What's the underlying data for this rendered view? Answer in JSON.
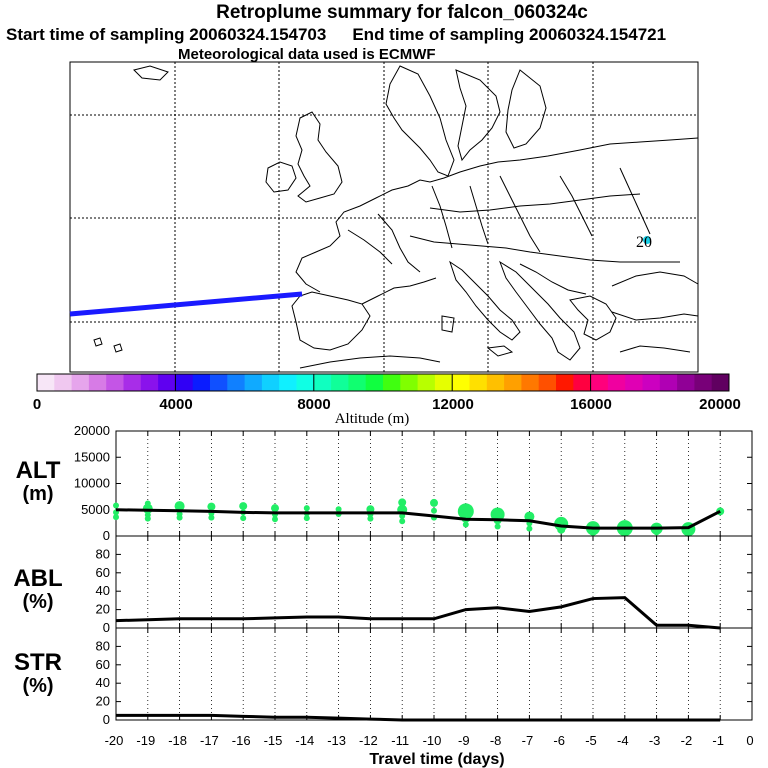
{
  "header": {
    "title": "Retroplume summary for falcon_060324c",
    "start_label": "Start time of sampling 20060324.154703",
    "end_label": "End time of sampling 20060324.154721",
    "met_label": "Meteorological data used is ECMWF"
  },
  "map": {
    "marker_label": "20",
    "trajectory_color": "#1a1aff",
    "marker_color": "#17d0e8"
  },
  "colorbar": {
    "label": "Altitude (m)",
    "ticks": [
      "0",
      "4000",
      "8000",
      "12000",
      "16000",
      "20000"
    ],
    "range": [
      0,
      20000
    ],
    "colors": [
      "#f7e6f7",
      "#f0c8f0",
      "#e6a5ec",
      "#d77be6",
      "#c455e6",
      "#a82de8",
      "#8a12ec",
      "#5f00f0",
      "#3000f5",
      "#0a1cff",
      "#1050ff",
      "#1080ff",
      "#10aaff",
      "#10d0ff",
      "#10f0ff",
      "#10ffe4",
      "#10ffc0",
      "#10ff99",
      "#10ff70",
      "#10ff40",
      "#40ff10",
      "#80ff00",
      "#b8ff00",
      "#e6ff00",
      "#ffff00",
      "#ffe000",
      "#ffc000",
      "#ffa000",
      "#ff7800",
      "#ff5000",
      "#ff1800",
      "#ff0040",
      "#ff007c",
      "#f000a0",
      "#e000b4",
      "#cc00c0",
      "#b000b4",
      "#900096",
      "#780078",
      "#600060"
    ]
  },
  "chart_data": [
    {
      "type": "line",
      "name": "ALT",
      "label": "ALT",
      "unit": "(m)",
      "ylim": [
        0,
        20000
      ],
      "yticks": [
        "0",
        "5000",
        "10000",
        "15000",
        "20000"
      ],
      "x": [
        -20,
        -19,
        -18,
        -17,
        -16,
        -15,
        -14,
        -13,
        -12,
        -11,
        -10,
        -9,
        -8,
        -7,
        -6,
        -5,
        -4,
        -3,
        -2,
        -1
      ],
      "values": [
        5000,
        4900,
        4800,
        4700,
        4500,
        4400,
        4400,
        4400,
        4400,
        4400,
        3800,
        3200,
        3100,
        2900,
        1900,
        1500,
        1500,
        1500,
        1600,
        4700
      ],
      "marker_color": "#22ee66",
      "scatter": [
        {
          "x": -20,
          "y": 5800,
          "r": 3
        },
        {
          "x": -20,
          "y": 4500,
          "r": 3
        },
        {
          "x": -20,
          "y": 3600,
          "r": 3
        },
        {
          "x": -19,
          "y": 6200,
          "r": 3
        },
        {
          "x": -19,
          "y": 5200,
          "r": 5
        },
        {
          "x": -19,
          "y": 4000,
          "r": 3
        },
        {
          "x": -19,
          "y": 3300,
          "r": 3
        },
        {
          "x": -18,
          "y": 5700,
          "r": 5
        },
        {
          "x": -18,
          "y": 4200,
          "r": 3
        },
        {
          "x": -18,
          "y": 3500,
          "r": 3
        },
        {
          "x": -17,
          "y": 5600,
          "r": 4
        },
        {
          "x": -17,
          "y": 4300,
          "r": 3
        },
        {
          "x": -17,
          "y": 3500,
          "r": 3
        },
        {
          "x": -16,
          "y": 5700,
          "r": 4
        },
        {
          "x": -16,
          "y": 4500,
          "r": 3
        },
        {
          "x": -16,
          "y": 3400,
          "r": 3
        },
        {
          "x": -15,
          "y": 5300,
          "r": 4
        },
        {
          "x": -15,
          "y": 4100,
          "r": 3
        },
        {
          "x": -15,
          "y": 3200,
          "r": 3
        },
        {
          "x": -14,
          "y": 5300,
          "r": 3
        },
        {
          "x": -14,
          "y": 4300,
          "r": 3
        },
        {
          "x": -14,
          "y": 3400,
          "r": 3
        },
        {
          "x": -13,
          "y": 5100,
          "r": 3
        },
        {
          "x": -13,
          "y": 4200,
          "r": 3
        },
        {
          "x": -12,
          "y": 5100,
          "r": 4
        },
        {
          "x": -12,
          "y": 4100,
          "r": 3
        },
        {
          "x": -12,
          "y": 3300,
          "r": 3
        },
        {
          "x": -11,
          "y": 6400,
          "r": 4
        },
        {
          "x": -11,
          "y": 5000,
          "r": 5
        },
        {
          "x": -11,
          "y": 3800,
          "r": 3
        },
        {
          "x": -11,
          "y": 2800,
          "r": 3
        },
        {
          "x": -10,
          "y": 6300,
          "r": 4
        },
        {
          "x": -10,
          "y": 4800,
          "r": 3
        },
        {
          "x": -10,
          "y": 3500,
          "r": 3
        },
        {
          "x": -9,
          "y": 4700,
          "r": 8
        },
        {
          "x": -9,
          "y": 3500,
          "r": 5
        },
        {
          "x": -9,
          "y": 2200,
          "r": 3
        },
        {
          "x": -8,
          "y": 4100,
          "r": 7
        },
        {
          "x": -8,
          "y": 3000,
          "r": 4
        },
        {
          "x": -8,
          "y": 1800,
          "r": 3
        },
        {
          "x": -7,
          "y": 3700,
          "r": 5
        },
        {
          "x": -7,
          "y": 2400,
          "r": 3
        },
        {
          "x": -7,
          "y": 1400,
          "r": 3
        },
        {
          "x": -6,
          "y": 2300,
          "r": 7
        },
        {
          "x": -6,
          "y": 1200,
          "r": 4
        },
        {
          "x": -5,
          "y": 1500,
          "r": 7
        },
        {
          "x": -5,
          "y": 800,
          "r": 4
        },
        {
          "x": -4,
          "y": 1500,
          "r": 8
        },
        {
          "x": -4,
          "y": 900,
          "r": 5
        },
        {
          "x": -3,
          "y": 1400,
          "r": 6
        },
        {
          "x": -3,
          "y": 700,
          "r": 3
        },
        {
          "x": -2,
          "y": 1300,
          "r": 7
        },
        {
          "x": -2,
          "y": 600,
          "r": 4
        },
        {
          "x": -1,
          "y": 4700,
          "r": 4
        }
      ]
    },
    {
      "type": "line",
      "name": "ABL",
      "label": "ABL",
      "unit": "(%)",
      "ylim": [
        0,
        100
      ],
      "yticks": [
        "0",
        "20",
        "40",
        "60",
        "80"
      ],
      "x": [
        -20,
        -19,
        -18,
        -17,
        -16,
        -15,
        -14,
        -13,
        -12,
        -11,
        -10,
        -9,
        -8,
        -7,
        -6,
        -5,
        -4,
        -3,
        -2,
        -1
      ],
      "values": [
        8,
        9,
        10,
        10,
        10,
        11,
        12,
        12,
        10,
        10,
        10,
        20,
        22,
        18,
        23,
        32,
        33,
        3,
        3,
        0
      ]
    },
    {
      "type": "line",
      "name": "STR",
      "label": "STR",
      "unit": "(%)",
      "ylim": [
        0,
        100
      ],
      "yticks": [
        "0",
        "20",
        "40",
        "60",
        "80"
      ],
      "x": [
        -20,
        -19,
        -18,
        -17,
        -16,
        -15,
        -14,
        -13,
        -12,
        -11,
        -10,
        -9,
        -8,
        -7,
        -6,
        -5,
        -4,
        -3,
        -2,
        -1
      ],
      "values": [
        5,
        5,
        5,
        5,
        4,
        3,
        3,
        2,
        1,
        0,
        0,
        0,
        0,
        0,
        0,
        0,
        0,
        0,
        0,
        0
      ]
    }
  ],
  "xaxis": {
    "label": "Travel time (days)",
    "ticks": [
      "-20",
      "-19",
      "-18",
      "-17",
      "-16",
      "-15",
      "-14",
      "-13",
      "-12",
      "-11",
      "-10",
      "-9",
      "-8",
      "-7",
      "-6",
      "-5",
      "-4",
      "-3",
      "-2",
      "-1",
      "0"
    ]
  }
}
